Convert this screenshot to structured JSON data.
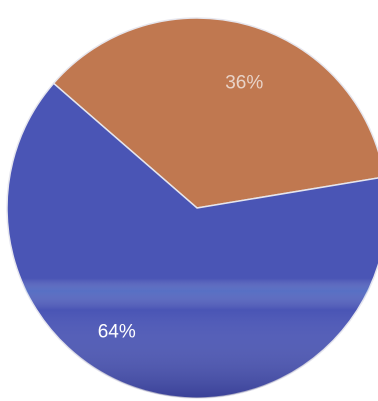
{
  "chart_data": {
    "type": "pie",
    "categories": [
      "",
      ""
    ],
    "values": [
      36,
      64
    ],
    "labels": [
      "36%",
      "64%"
    ],
    "colors": [
      "#c07850",
      "#4a55b5"
    ],
    "label_colors": [
      "#e8d3c8",
      "#ffffff"
    ],
    "title": ""
  }
}
